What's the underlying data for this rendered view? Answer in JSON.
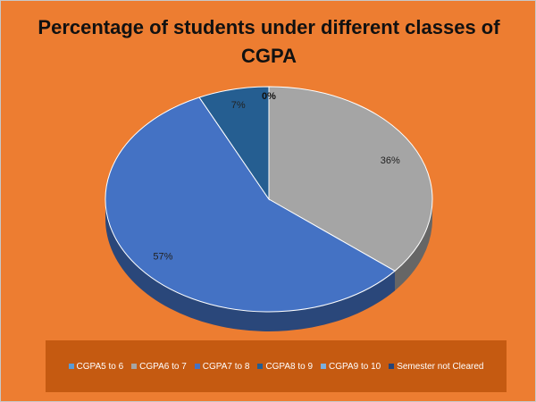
{
  "chart_data": {
    "type": "pie",
    "title": "Percentage of students under different classes of CGPA",
    "categories": [
      "CGPA5 to 6",
      "CGPA6 to 7",
      "CGPA7 to 8",
      "CGPA8 to 9",
      "CGPA9 to 10",
      "Semester not Cleared"
    ],
    "values": [
      0,
      36,
      57,
      7,
      0,
      0
    ],
    "data_labels": [
      "",
      "36%",
      "57%",
      "7%",
      "",
      "0%"
    ],
    "colors": [
      "#5B9BD5",
      "#A5A5A5",
      "#4472C4",
      "#255E91",
      "#7CAFDD",
      "#264478"
    ],
    "legend_position": "bottom"
  }
}
